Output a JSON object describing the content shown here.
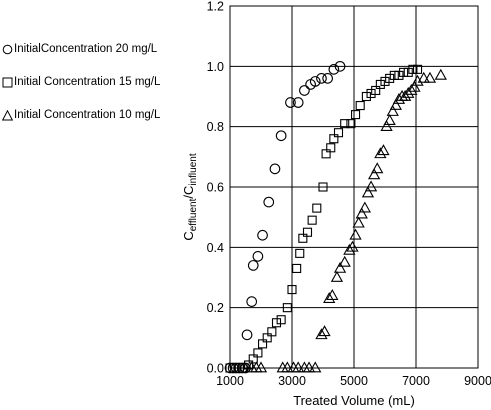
{
  "chart_data": {
    "type": "scatter",
    "xlabel": "Treated Volume (mL)",
    "ylabel_main": "C",
    "ylabel_sub1": "effluent",
    "ylabel_sep": "/C",
    "ylabel_sub2": "influent",
    "xlim": [
      1000,
      9000
    ],
    "ylim": [
      0,
      1.2
    ],
    "xticks": [
      "1000",
      "3000",
      "5000",
      "7000",
      "9000"
    ],
    "yticks": [
      "0.0",
      "0.2",
      "0.4",
      "0.6",
      "0.8",
      "1.0",
      "1.2"
    ],
    "grid": true,
    "legend_position": "left",
    "series": [
      {
        "name": "InitialConcentration 20 mg/L",
        "marker": "circle",
        "points": [
          [
            1000,
            0.0
          ],
          [
            1100,
            0.0
          ],
          [
            1200,
            0.0
          ],
          [
            1300,
            0.0
          ],
          [
            1400,
            0.0
          ],
          [
            1500,
            0.0
          ],
          [
            1550,
            0.11
          ],
          [
            1700,
            0.22
          ],
          [
            1750,
            0.34
          ],
          [
            1900,
            0.37
          ],
          [
            2050,
            0.44
          ],
          [
            2250,
            0.55
          ],
          [
            2450,
            0.66
          ],
          [
            2650,
            0.77
          ],
          [
            2950,
            0.88
          ],
          [
            3200,
            0.88
          ],
          [
            3400,
            0.92
          ],
          [
            3600,
            0.94
          ],
          [
            3750,
            0.95
          ],
          [
            3950,
            0.96
          ],
          [
            4150,
            0.96
          ],
          [
            4350,
            0.99
          ],
          [
            4550,
            1.0
          ]
        ]
      },
      {
        "name": "Initial Concentration 15 mg/L",
        "marker": "square",
        "points": [
          [
            1000,
            0.0
          ],
          [
            1150,
            0.0
          ],
          [
            1300,
            0.0
          ],
          [
            1450,
            0.0
          ],
          [
            1600,
            0.01
          ],
          [
            1750,
            0.03
          ],
          [
            1900,
            0.05
          ],
          [
            2050,
            0.08
          ],
          [
            2200,
            0.1
          ],
          [
            2350,
            0.12
          ],
          [
            2500,
            0.15
          ],
          [
            2650,
            0.16
          ],
          [
            2850,
            0.2
          ],
          [
            3000,
            0.26
          ],
          [
            3150,
            0.33
          ],
          [
            3250,
            0.38
          ],
          [
            3350,
            0.43
          ],
          [
            3500,
            0.45
          ],
          [
            3650,
            0.49
          ],
          [
            3800,
            0.53
          ],
          [
            4000,
            0.6
          ],
          [
            4100,
            0.71
          ],
          [
            4250,
            0.73
          ],
          [
            4350,
            0.76
          ],
          [
            4500,
            0.78
          ],
          [
            4700,
            0.81
          ],
          [
            4900,
            0.81
          ],
          [
            5050,
            0.84
          ],
          [
            5200,
            0.87
          ],
          [
            5400,
            0.9
          ],
          [
            5550,
            0.91
          ],
          [
            5700,
            0.92
          ],
          [
            5850,
            0.94
          ],
          [
            6000,
            0.95
          ],
          [
            6150,
            0.96
          ],
          [
            6300,
            0.97
          ],
          [
            6450,
            0.97
          ],
          [
            6600,
            0.98
          ],
          [
            6750,
            0.98
          ],
          [
            6900,
            0.99
          ],
          [
            7050,
            0.99
          ]
        ]
      },
      {
        "name": "Initial Concentration  10 mg/L",
        "marker": "triangle",
        "points": [
          [
            1700,
            0.0
          ],
          [
            1850,
            0.0
          ],
          [
            2000,
            0.0
          ],
          [
            2700,
            0.0
          ],
          [
            2850,
            0.0
          ],
          [
            3050,
            0.0
          ],
          [
            3200,
            0.0
          ],
          [
            3400,
            0.0
          ],
          [
            3550,
            0.0
          ],
          [
            3750,
            0.0
          ],
          [
            3950,
            0.11
          ],
          [
            4050,
            0.12
          ],
          [
            4200,
            0.23
          ],
          [
            4300,
            0.24
          ],
          [
            4450,
            0.3
          ],
          [
            4550,
            0.33
          ],
          [
            4700,
            0.35
          ],
          [
            4850,
            0.39
          ],
          [
            4950,
            0.4
          ],
          [
            5050,
            0.44
          ],
          [
            5150,
            0.48
          ],
          [
            5250,
            0.51
          ],
          [
            5350,
            0.53
          ],
          [
            5450,
            0.58
          ],
          [
            5550,
            0.6
          ],
          [
            5650,
            0.64
          ],
          [
            5750,
            0.66
          ],
          [
            5850,
            0.71
          ],
          [
            5950,
            0.72
          ],
          [
            6050,
            0.8
          ],
          [
            6150,
            0.82
          ],
          [
            6250,
            0.85
          ],
          [
            6350,
            0.87
          ],
          [
            6450,
            0.89
          ],
          [
            6550,
            0.9
          ],
          [
            6650,
            0.9
          ],
          [
            6750,
            0.91
          ],
          [
            6850,
            0.92
          ],
          [
            6950,
            0.93
          ],
          [
            7050,
            0.95
          ],
          [
            7250,
            0.96
          ],
          [
            7450,
            0.96
          ],
          [
            7800,
            0.97
          ]
        ]
      }
    ]
  }
}
